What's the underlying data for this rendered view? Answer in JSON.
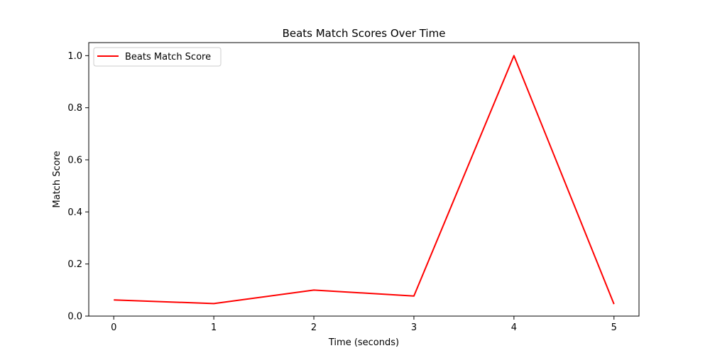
{
  "chart_data": {
    "type": "line",
    "title": "Beats Match Scores Over Time",
    "xlabel": "Time (seconds)",
    "ylabel": "Match Score",
    "x": [
      0,
      1,
      2,
      3,
      4,
      5
    ],
    "xticks": [
      0,
      1,
      2,
      3,
      4,
      5
    ],
    "yticks": [
      0.0,
      0.2,
      0.4,
      0.6,
      0.8,
      1.0
    ],
    "ytick_labels": [
      "0.0",
      "0.2",
      "0.4",
      "0.6",
      "0.8",
      "1.0"
    ],
    "xlim": [
      -0.25,
      5.25
    ],
    "ylim": [
      0.0,
      1.05
    ],
    "grid": false,
    "legend_position": "upper-left",
    "series": [
      {
        "name": "Beats Match Score",
        "color": "#ff0000",
        "values": [
          0.062,
          0.048,
          0.1,
          0.077,
          1.0,
          0.046
        ]
      }
    ]
  }
}
